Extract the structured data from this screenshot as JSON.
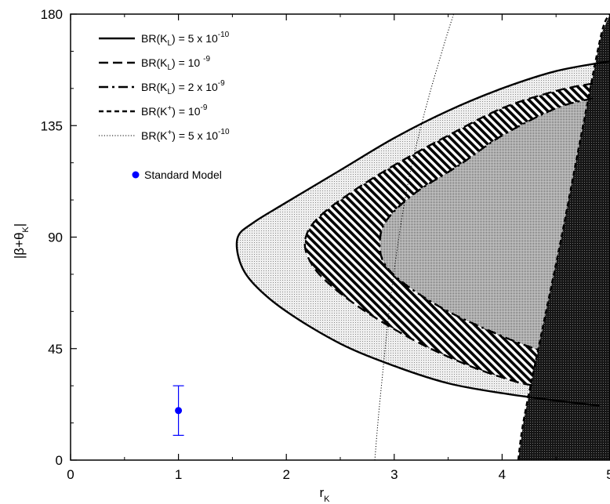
{
  "chart_data": {
    "type": "area",
    "xlabel": "r",
    "xlabel_sub": "K",
    "ylabel": "|β+θ",
    "ylabel_sub": "K",
    "ylabel_close": "|",
    "xlim": [
      0,
      5
    ],
    "ylim": [
      0,
      180
    ],
    "xticks": [
      0,
      1,
      2,
      3,
      4,
      5
    ],
    "yticks": [
      0,
      45,
      90,
      135,
      180
    ],
    "grid": false,
    "legend_position": "top-left",
    "legend": [
      {
        "style": "solid",
        "label_pre": "BR(K",
        "label_sub": "L",
        "label_post": ") = 5 x 10",
        "label_sup": "-10"
      },
      {
        "style": "long-dash",
        "label_pre": "BR(K",
        "label_sub": "L",
        "label_post": ") = 10 ",
        "label_sup": "-9"
      },
      {
        "style": "dash-dot",
        "label_pre": "BR(K",
        "label_sub": "L",
        "label_post": ") = 2 x 10",
        "label_sup": "-9"
      },
      {
        "style": "short-dash",
        "label_pre": "BR(K",
        "label_sup_inner": "+",
        "label_post": ") = 10",
        "label_sup": "-9"
      },
      {
        "style": "dotted",
        "label_pre": "BR(K",
        "label_sup_inner": "+",
        "label_post": ") = 5 x 10",
        "label_sup": "-10"
      }
    ],
    "standard_model_label": "Standard Model",
    "standard_model_point": {
      "x": 1.0,
      "y": 20,
      "err_low": 10,
      "err_high": 30
    },
    "colors": {
      "standard_model": "#0000ff",
      "curve": "#000000"
    },
    "series": [
      {
        "style": "solid",
        "shape": "ellipse-region",
        "points": [
          [
            5.0,
            161
          ],
          [
            4.5,
            157
          ],
          [
            4.0,
            150
          ],
          [
            3.5,
            141
          ],
          [
            3.0,
            130
          ],
          [
            2.5,
            117
          ],
          [
            2.0,
            104
          ],
          [
            1.7,
            96
          ],
          [
            1.55,
            90
          ],
          [
            1.57,
            80
          ],
          [
            1.7,
            71
          ],
          [
            2.0,
            60
          ],
          [
            2.5,
            47
          ],
          [
            3.0,
            38
          ],
          [
            3.5,
            31
          ],
          [
            4.0,
            27
          ],
          [
            4.5,
            24
          ],
          [
            4.9,
            22
          ]
        ]
      },
      {
        "style": "long-dash",
        "shape": "ellipse-region",
        "points": [
          [
            4.84,
            152
          ],
          [
            4.5,
            149
          ],
          [
            4.0,
            142
          ],
          [
            3.5,
            131
          ],
          [
            3.0,
            119
          ],
          [
            2.6,
            108
          ],
          [
            2.3,
            98
          ],
          [
            2.18,
            90
          ],
          [
            2.2,
            82
          ],
          [
            2.35,
            73
          ],
          [
            2.7,
            61
          ],
          [
            3.2,
            48
          ],
          [
            3.7,
            38
          ],
          [
            4.1,
            32
          ],
          [
            4.3,
            30
          ]
        ]
      },
      {
        "style": "dash-dot",
        "shape": "ellipse-region",
        "points": [
          [
            4.84,
            146
          ],
          [
            4.5,
            142
          ],
          [
            4.0,
            131
          ],
          [
            3.6,
            119
          ],
          [
            3.2,
            108
          ],
          [
            2.95,
            98
          ],
          [
            2.87,
            90
          ],
          [
            2.9,
            80
          ],
          [
            3.1,
            71
          ],
          [
            3.5,
            60
          ],
          [
            4.0,
            50
          ],
          [
            4.3,
            45
          ]
        ]
      },
      {
        "style": "short-dash",
        "shape": "lens",
        "points": [
          [
            4.15,
            0
          ],
          [
            4.2,
            16
          ],
          [
            4.35,
            48
          ],
          [
            4.55,
            90
          ],
          [
            4.75,
            135
          ],
          [
            4.92,
            172
          ],
          [
            5.0,
            180
          ]
        ]
      },
      {
        "style": "dotted",
        "shape": "line",
        "points": [
          [
            2.82,
            0
          ],
          [
            2.87,
            25
          ],
          [
            2.98,
            70
          ],
          [
            3.12,
            110
          ],
          [
            3.28,
            140
          ],
          [
            3.45,
            166
          ],
          [
            3.55,
            180
          ]
        ]
      }
    ]
  }
}
